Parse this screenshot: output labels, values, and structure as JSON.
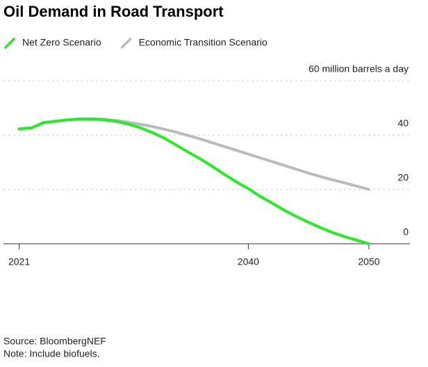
{
  "chart_data": {
    "type": "line",
    "title": "Oil Demand in Road Transport",
    "x": [
      2021,
      2022,
      2023,
      2024,
      2025,
      2026,
      2027,
      2028,
      2029,
      2030,
      2031,
      2032,
      2033,
      2034,
      2035,
      2036,
      2037,
      2038,
      2039,
      2040,
      2041,
      2042,
      2043,
      2044,
      2045,
      2046,
      2047,
      2048,
      2049,
      2050
    ],
    "series": [
      {
        "name": "Net Zero Scenario",
        "color": "#22ee22",
        "values": [
          42.3,
          42.6,
          44.6,
          45.1,
          45.6,
          45.9,
          45.9,
          45.6,
          45.1,
          44.1,
          42.8,
          41.0,
          39.0,
          36.4,
          33.8,
          31.3,
          28.5,
          25.6,
          22.8,
          20.3,
          17.4,
          14.9,
          12.3,
          10.0,
          7.9,
          5.9,
          4.1,
          2.6,
          1.3,
          0
        ]
      },
      {
        "name": "Economic Transition Scenario",
        "color": "#bbbbbb",
        "values": [
          42.3,
          42.6,
          44.6,
          45.1,
          45.6,
          46.0,
          46.0,
          45.9,
          45.4,
          44.8,
          44.0,
          43.2,
          42.2,
          41.1,
          39.9,
          38.6,
          37.2,
          35.8,
          34.4,
          33.0,
          31.6,
          30.2,
          28.8,
          27.4,
          26.0,
          24.7,
          23.5,
          22.4,
          21.2,
          20.0
        ]
      }
    ],
    "xlim": [
      2019.7,
      2053.4
    ],
    "xticks": [
      2021,
      2040,
      2050
    ],
    "ylim": [
      0,
      60
    ],
    "yticks": [
      0,
      20,
      40,
      {
        "value": 60,
        "label": "60 million barrels a day"
      }
    ],
    "grid": true,
    "source": "Source: BloombergNEF",
    "note": "Note: Include biofuels."
  }
}
